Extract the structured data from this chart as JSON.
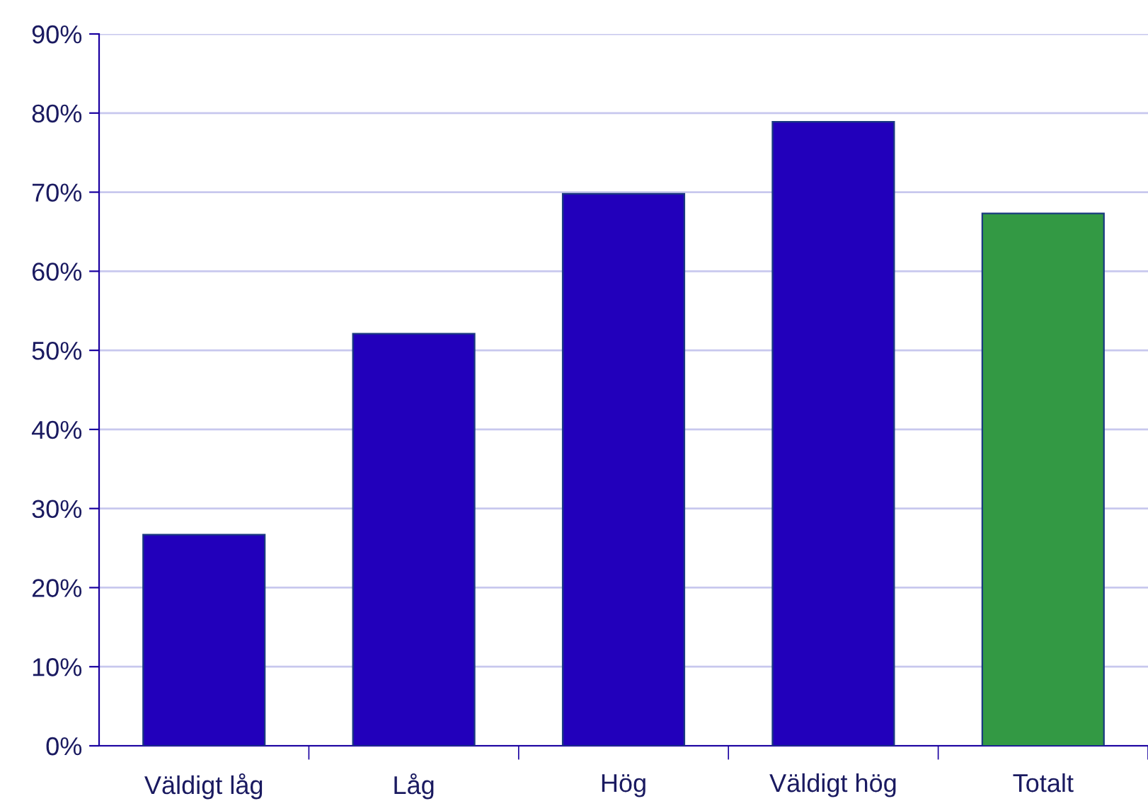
{
  "chart_data": {
    "type": "bar",
    "categories": [
      "Väldigt låg",
      "Låg",
      "Hög",
      "Väldigt hög",
      "Totalt"
    ],
    "values": [
      26.7,
      52.1,
      69.8,
      78.9,
      67.3
    ],
    "colors": [
      "#2200bb",
      "#2200bb",
      "#2200bb",
      "#2200bb",
      "#339944"
    ],
    "ylim": [
      0,
      90
    ],
    "yticks": [
      {
        "value": 0,
        "label": "0%"
      },
      {
        "value": 10,
        "label": "10%"
      },
      {
        "value": 20,
        "label": "20%"
      },
      {
        "value": 30,
        "label": "30%"
      },
      {
        "value": 40,
        "label": "40%"
      },
      {
        "value": 50,
        "label": "50%"
      },
      {
        "value": 60,
        "label": "60%"
      },
      {
        "value": 70,
        "label": "70%"
      },
      {
        "value": 80,
        "label": "80%"
      },
      {
        "value": 90,
        "label": "90%"
      }
    ],
    "grid": "y"
  }
}
